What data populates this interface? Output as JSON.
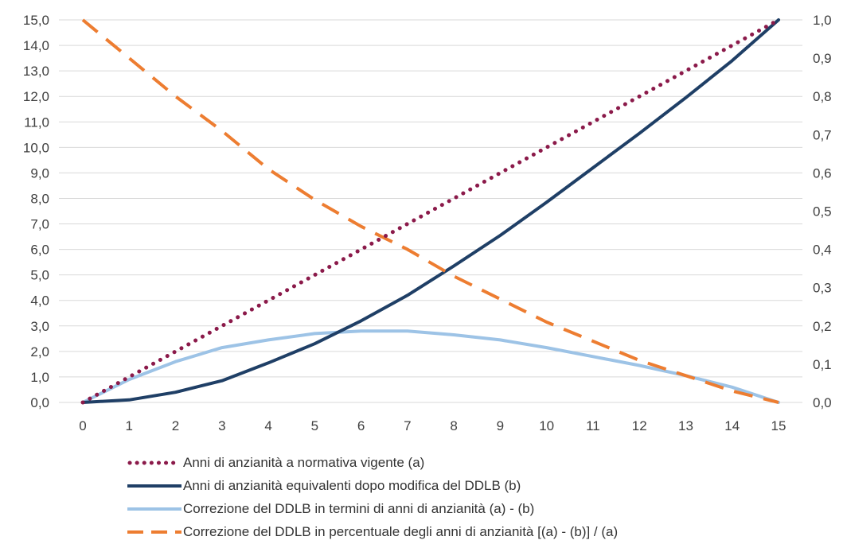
{
  "chart_data": {
    "type": "line",
    "x": [
      0,
      1,
      2,
      3,
      4,
      5,
      6,
      7,
      8,
      9,
      10,
      11,
      12,
      13,
      14,
      15
    ],
    "xlim": [
      0,
      15
    ],
    "ylim_left": [
      0,
      15
    ],
    "ylim_right": [
      0,
      1
    ],
    "x_tick_labels": [
      "0",
      "1",
      "2",
      "3",
      "4",
      "5",
      "6",
      "7",
      "8",
      "9",
      "10",
      "11",
      "12",
      "13",
      "14",
      "15"
    ],
    "y_left_tick_labels": [
      "0,0",
      "1,0",
      "2,0",
      "3,0",
      "4,0",
      "5,0",
      "6,0",
      "7,0",
      "8,0",
      "9,0",
      "10,0",
      "11,0",
      "12,0",
      "13,0",
      "14,0",
      "15,0"
    ],
    "y_right_tick_labels": [
      "0,0",
      "0,1",
      "0,2",
      "0,3",
      "0,4",
      "0,5",
      "0,6",
      "0,7",
      "0,8",
      "0,9",
      "1,0"
    ],
    "grid": "horizontal",
    "legend_position": "bottom",
    "series": [
      {
        "name": "Anni di anzianità a normativa vigente (a)",
        "axis": "left",
        "style": "dotted",
        "color": "#8B1A4A",
        "values": [
          0,
          1,
          2,
          3,
          4,
          5,
          6,
          7,
          8,
          9,
          10,
          11,
          12,
          13,
          14,
          15
        ]
      },
      {
        "name": "Anni di anzianità equivalenti dopo modifica del DDLB (b)",
        "axis": "left",
        "style": "solid",
        "color": "#1F3F66",
        "values": [
          0,
          0.1,
          0.4,
          0.85,
          1.55,
          2.3,
          3.2,
          4.2,
          5.35,
          6.55,
          7.85,
          9.2,
          10.55,
          11.95,
          13.4,
          15.0
        ]
      },
      {
        "name": "Correzione del DDLB in termini di anni di anzianità (a) - (b)",
        "axis": "left",
        "style": "solid",
        "color": "#9DC3E6",
        "values": [
          0,
          0.9,
          1.6,
          2.15,
          2.45,
          2.7,
          2.8,
          2.8,
          2.65,
          2.45,
          2.15,
          1.8,
          1.45,
          1.05,
          0.6,
          0.0
        ]
      },
      {
        "name": "Correzione del DDLB in percentuale degli anni di anzianità [(a) - (b)] / (a)",
        "axis": "right",
        "style": "dashed",
        "color": "#ED7D31",
        "values": [
          1.0,
          0.9,
          0.8,
          0.71,
          0.61,
          0.53,
          0.46,
          0.4,
          0.33,
          0.27,
          0.21,
          0.16,
          0.11,
          0.07,
          0.03,
          0.0
        ]
      }
    ]
  }
}
